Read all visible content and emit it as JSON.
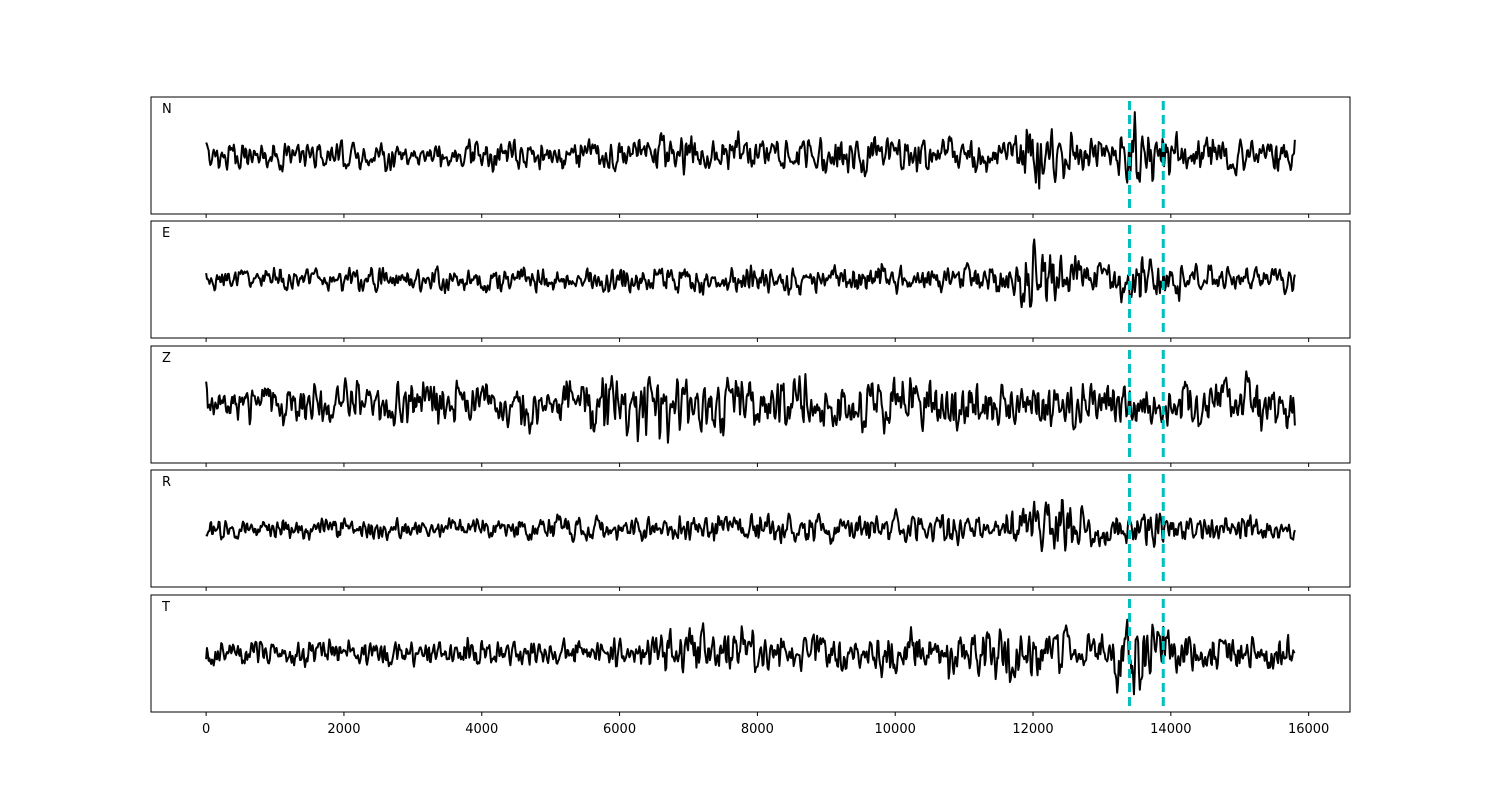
{
  "chart_data": {
    "type": "line",
    "layout": "stacked-panels",
    "shared_x": true,
    "xlim": [
      -800,
      16600
    ],
    "x_ticks": [
      0,
      2000,
      4000,
      6000,
      8000,
      10000,
      12000,
      14000,
      16000
    ],
    "x_tick_labels": [
      "0",
      "2000",
      "4000",
      "6000",
      "8000",
      "10000",
      "12000",
      "14000",
      "16000"
    ],
    "y_ticks_shown": false,
    "grid": false,
    "line_color": "#000000",
    "marker_color": "#00bfbf",
    "markers": [
      {
        "x": 13400,
        "style": "dashed"
      },
      {
        "x": 13890,
        "style": "dashed"
      }
    ],
    "series": [
      {
        "name": "N",
        "x_range": [
          0,
          15800
        ],
        "ylim": [
          -1.2,
          1.2
        ],
        "envelope": [
          {
            "x": 0,
            "amp": 0.42
          },
          {
            "x": 1500,
            "amp": 0.4
          },
          {
            "x": 4000,
            "amp": 0.42
          },
          {
            "x": 6500,
            "amp": 0.5
          },
          {
            "x": 6850,
            "amp": 0.7
          },
          {
            "x": 8000,
            "amp": 0.55
          },
          {
            "x": 9500,
            "amp": 0.55
          },
          {
            "x": 11500,
            "amp": 0.45
          },
          {
            "x": 12050,
            "amp": 0.95
          },
          {
            "x": 12800,
            "amp": 0.45
          },
          {
            "x": 13470,
            "amp": 1.0
          },
          {
            "x": 14200,
            "amp": 0.55
          },
          {
            "x": 15800,
            "amp": 0.5
          }
        ]
      },
      {
        "name": "E",
        "x_range": [
          0,
          15800
        ],
        "ylim": [
          -1.2,
          1.2
        ],
        "envelope": [
          {
            "x": 0,
            "amp": 0.3
          },
          {
            "x": 3000,
            "amp": 0.32
          },
          {
            "x": 6000,
            "amp": 0.38
          },
          {
            "x": 7500,
            "amp": 0.42
          },
          {
            "x": 11500,
            "amp": 0.38
          },
          {
            "x": 12020,
            "amp": 1.05
          },
          {
            "x": 12800,
            "amp": 0.45
          },
          {
            "x": 13480,
            "amp": 0.75
          },
          {
            "x": 14500,
            "amp": 0.38
          },
          {
            "x": 15800,
            "amp": 0.35
          }
        ]
      },
      {
        "name": "Z",
        "x_range": [
          0,
          15800
        ],
        "ylim": [
          -1.2,
          1.2
        ],
        "envelope": [
          {
            "x": 0,
            "amp": 0.55
          },
          {
            "x": 2500,
            "amp": 0.62
          },
          {
            "x": 5000,
            "amp": 0.65
          },
          {
            "x": 6400,
            "amp": 1.05
          },
          {
            "x": 8000,
            "amp": 0.8
          },
          {
            "x": 10000,
            "amp": 0.7
          },
          {
            "x": 12500,
            "amp": 0.65
          },
          {
            "x": 14000,
            "amp": 0.65
          },
          {
            "x": 15700,
            "amp": 0.85
          }
        ]
      },
      {
        "name": "R",
        "x_range": [
          0,
          15800
        ],
        "ylim": [
          -1.2,
          1.2
        ],
        "envelope": [
          {
            "x": 0,
            "amp": 0.3
          },
          {
            "x": 3000,
            "amp": 0.3
          },
          {
            "x": 6000,
            "amp": 0.35
          },
          {
            "x": 8400,
            "amp": 0.45
          },
          {
            "x": 11500,
            "amp": 0.4
          },
          {
            "x": 12080,
            "amp": 1.1
          },
          {
            "x": 12800,
            "amp": 0.45
          },
          {
            "x": 13500,
            "amp": 0.55
          },
          {
            "x": 14500,
            "amp": 0.38
          },
          {
            "x": 15800,
            "amp": 0.35
          }
        ]
      },
      {
        "name": "T",
        "x_range": [
          0,
          15800
        ],
        "ylim": [
          -1.2,
          1.2
        ],
        "envelope": [
          {
            "x": 0,
            "amp": 0.38
          },
          {
            "x": 3000,
            "amp": 0.38
          },
          {
            "x": 6500,
            "amp": 0.45
          },
          {
            "x": 6850,
            "amp": 0.75
          },
          {
            "x": 9000,
            "amp": 0.55
          },
          {
            "x": 12000,
            "amp": 0.8
          },
          {
            "x": 12800,
            "amp": 0.5
          },
          {
            "x": 13470,
            "amp": 1.1
          },
          {
            "x": 14300,
            "amp": 0.5
          },
          {
            "x": 15200,
            "amp": 0.55
          },
          {
            "x": 15800,
            "amp": 0.5
          }
        ]
      }
    ]
  }
}
